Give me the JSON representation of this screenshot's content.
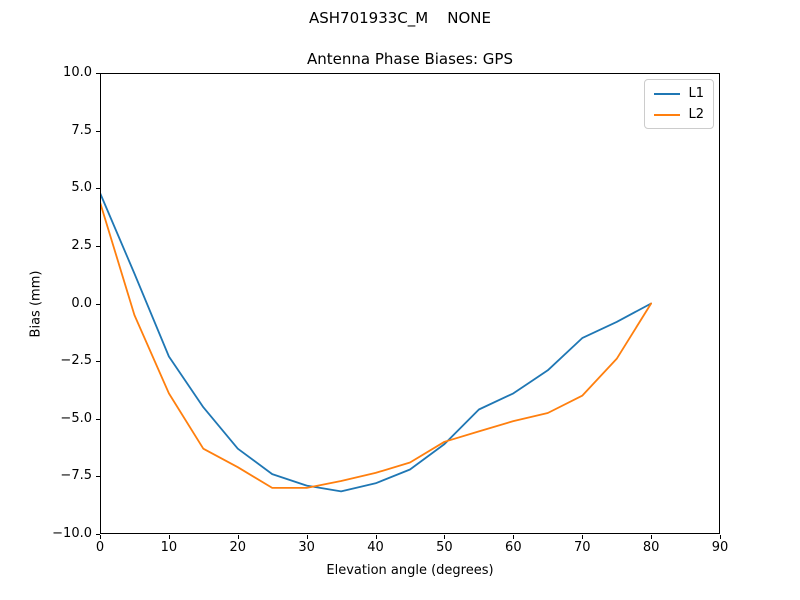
{
  "figure": {
    "suptitle": "ASH701933C_M    NONE"
  },
  "chart_data": {
    "type": "line",
    "title": "Antenna Phase Biases: GPS",
    "xlabel": "Elevation angle (degrees)",
    "ylabel": "Bias (mm)",
    "xlim": [
      0,
      90
    ],
    "ylim": [
      -10,
      10
    ],
    "grid": false,
    "legend_position": "upper right",
    "x_ticks": {
      "values": [
        0,
        10,
        20,
        30,
        40,
        50,
        60,
        70,
        80,
        90
      ],
      "labels": [
        "0",
        "10",
        "20",
        "30",
        "40",
        "50",
        "60",
        "70",
        "80",
        "90"
      ]
    },
    "y_ticks": {
      "values": [
        -10,
        -7.5,
        -5,
        -2.5,
        0,
        2.5,
        5,
        7.5,
        10
      ],
      "labels": [
        "−10.0",
        "−7.5",
        "−5.0",
        "−2.5",
        "0.0",
        "2.5",
        "5.0",
        "7.5",
        "10.0"
      ]
    },
    "x": [
      0,
      5,
      10,
      15,
      20,
      25,
      30,
      35,
      40,
      45,
      50,
      55,
      60,
      65,
      70,
      75,
      80
    ],
    "series": [
      {
        "name": "L1",
        "color": "#1f77b4",
        "values": [
          4.8,
          1.3,
          -2.3,
          -4.5,
          -6.3,
          -7.4,
          -7.9,
          -8.15,
          -7.8,
          -7.2,
          -6.1,
          -4.6,
          -3.9,
          -2.9,
          -1.5,
          -0.8,
          0.0
        ]
      },
      {
        "name": "L2",
        "color": "#ff7f0e",
        "values": [
          4.4,
          -0.5,
          -3.9,
          -6.3,
          -7.1,
          -8.0,
          -8.0,
          -7.7,
          -7.35,
          -6.9,
          -6.0,
          -5.55,
          -5.1,
          -4.75,
          -4.0,
          -2.4,
          0.0
        ]
      }
    ]
  }
}
